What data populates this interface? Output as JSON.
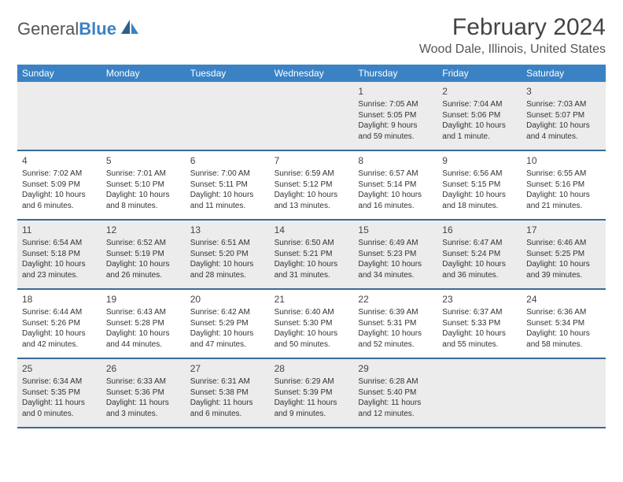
{
  "logo": {
    "text1": "General",
    "text2": "Blue"
  },
  "title": "February 2024",
  "location": "Wood Dale, Illinois, United States",
  "headers": [
    "Sunday",
    "Monday",
    "Tuesday",
    "Wednesday",
    "Thursday",
    "Friday",
    "Saturday"
  ],
  "colors": {
    "header_bg": "#3b82c4",
    "header_text": "#ffffff",
    "border": "#3b6a9a",
    "shade": "#ececec"
  },
  "weeks": [
    [
      {
        "blank": true
      },
      {
        "blank": true
      },
      {
        "blank": true
      },
      {
        "blank": true
      },
      {
        "num": "1",
        "sunrise": "Sunrise: 7:05 AM",
        "sunset": "Sunset: 5:05 PM",
        "day1": "Daylight: 9 hours",
        "day2": "and 59 minutes."
      },
      {
        "num": "2",
        "sunrise": "Sunrise: 7:04 AM",
        "sunset": "Sunset: 5:06 PM",
        "day1": "Daylight: 10 hours",
        "day2": "and 1 minute."
      },
      {
        "num": "3",
        "sunrise": "Sunrise: 7:03 AM",
        "sunset": "Sunset: 5:07 PM",
        "day1": "Daylight: 10 hours",
        "day2": "and 4 minutes."
      }
    ],
    [
      {
        "num": "4",
        "sunrise": "Sunrise: 7:02 AM",
        "sunset": "Sunset: 5:09 PM",
        "day1": "Daylight: 10 hours",
        "day2": "and 6 minutes."
      },
      {
        "num": "5",
        "sunrise": "Sunrise: 7:01 AM",
        "sunset": "Sunset: 5:10 PM",
        "day1": "Daylight: 10 hours",
        "day2": "and 8 minutes."
      },
      {
        "num": "6",
        "sunrise": "Sunrise: 7:00 AM",
        "sunset": "Sunset: 5:11 PM",
        "day1": "Daylight: 10 hours",
        "day2": "and 11 minutes."
      },
      {
        "num": "7",
        "sunrise": "Sunrise: 6:59 AM",
        "sunset": "Sunset: 5:12 PM",
        "day1": "Daylight: 10 hours",
        "day2": "and 13 minutes."
      },
      {
        "num": "8",
        "sunrise": "Sunrise: 6:57 AM",
        "sunset": "Sunset: 5:14 PM",
        "day1": "Daylight: 10 hours",
        "day2": "and 16 minutes."
      },
      {
        "num": "9",
        "sunrise": "Sunrise: 6:56 AM",
        "sunset": "Sunset: 5:15 PM",
        "day1": "Daylight: 10 hours",
        "day2": "and 18 minutes."
      },
      {
        "num": "10",
        "sunrise": "Sunrise: 6:55 AM",
        "sunset": "Sunset: 5:16 PM",
        "day1": "Daylight: 10 hours",
        "day2": "and 21 minutes."
      }
    ],
    [
      {
        "num": "11",
        "sunrise": "Sunrise: 6:54 AM",
        "sunset": "Sunset: 5:18 PM",
        "day1": "Daylight: 10 hours",
        "day2": "and 23 minutes."
      },
      {
        "num": "12",
        "sunrise": "Sunrise: 6:52 AM",
        "sunset": "Sunset: 5:19 PM",
        "day1": "Daylight: 10 hours",
        "day2": "and 26 minutes."
      },
      {
        "num": "13",
        "sunrise": "Sunrise: 6:51 AM",
        "sunset": "Sunset: 5:20 PM",
        "day1": "Daylight: 10 hours",
        "day2": "and 28 minutes."
      },
      {
        "num": "14",
        "sunrise": "Sunrise: 6:50 AM",
        "sunset": "Sunset: 5:21 PM",
        "day1": "Daylight: 10 hours",
        "day2": "and 31 minutes."
      },
      {
        "num": "15",
        "sunrise": "Sunrise: 6:49 AM",
        "sunset": "Sunset: 5:23 PM",
        "day1": "Daylight: 10 hours",
        "day2": "and 34 minutes."
      },
      {
        "num": "16",
        "sunrise": "Sunrise: 6:47 AM",
        "sunset": "Sunset: 5:24 PM",
        "day1": "Daylight: 10 hours",
        "day2": "and 36 minutes."
      },
      {
        "num": "17",
        "sunrise": "Sunrise: 6:46 AM",
        "sunset": "Sunset: 5:25 PM",
        "day1": "Daylight: 10 hours",
        "day2": "and 39 minutes."
      }
    ],
    [
      {
        "num": "18",
        "sunrise": "Sunrise: 6:44 AM",
        "sunset": "Sunset: 5:26 PM",
        "day1": "Daylight: 10 hours",
        "day2": "and 42 minutes."
      },
      {
        "num": "19",
        "sunrise": "Sunrise: 6:43 AM",
        "sunset": "Sunset: 5:28 PM",
        "day1": "Daylight: 10 hours",
        "day2": "and 44 minutes."
      },
      {
        "num": "20",
        "sunrise": "Sunrise: 6:42 AM",
        "sunset": "Sunset: 5:29 PM",
        "day1": "Daylight: 10 hours",
        "day2": "and 47 minutes."
      },
      {
        "num": "21",
        "sunrise": "Sunrise: 6:40 AM",
        "sunset": "Sunset: 5:30 PM",
        "day1": "Daylight: 10 hours",
        "day2": "and 50 minutes."
      },
      {
        "num": "22",
        "sunrise": "Sunrise: 6:39 AM",
        "sunset": "Sunset: 5:31 PM",
        "day1": "Daylight: 10 hours",
        "day2": "and 52 minutes."
      },
      {
        "num": "23",
        "sunrise": "Sunrise: 6:37 AM",
        "sunset": "Sunset: 5:33 PM",
        "day1": "Daylight: 10 hours",
        "day2": "and 55 minutes."
      },
      {
        "num": "24",
        "sunrise": "Sunrise: 6:36 AM",
        "sunset": "Sunset: 5:34 PM",
        "day1": "Daylight: 10 hours",
        "day2": "and 58 minutes."
      }
    ],
    [
      {
        "num": "25",
        "sunrise": "Sunrise: 6:34 AM",
        "sunset": "Sunset: 5:35 PM",
        "day1": "Daylight: 11 hours",
        "day2": "and 0 minutes."
      },
      {
        "num": "26",
        "sunrise": "Sunrise: 6:33 AM",
        "sunset": "Sunset: 5:36 PM",
        "day1": "Daylight: 11 hours",
        "day2": "and 3 minutes."
      },
      {
        "num": "27",
        "sunrise": "Sunrise: 6:31 AM",
        "sunset": "Sunset: 5:38 PM",
        "day1": "Daylight: 11 hours",
        "day2": "and 6 minutes."
      },
      {
        "num": "28",
        "sunrise": "Sunrise: 6:29 AM",
        "sunset": "Sunset: 5:39 PM",
        "day1": "Daylight: 11 hours",
        "day2": "and 9 minutes."
      },
      {
        "num": "29",
        "sunrise": "Sunrise: 6:28 AM",
        "sunset": "Sunset: 5:40 PM",
        "day1": "Daylight: 11 hours",
        "day2": "and 12 minutes."
      },
      {
        "blank": true
      },
      {
        "blank": true
      }
    ]
  ]
}
